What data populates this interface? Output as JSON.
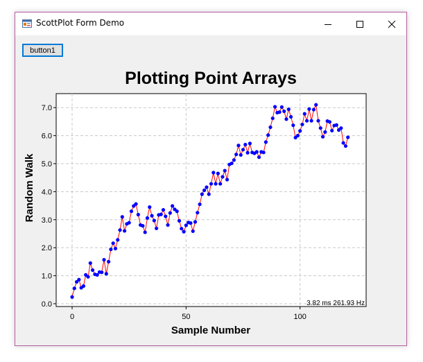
{
  "window": {
    "title": "ScottPlot Form Demo",
    "icons": {
      "app": "app-form-icon",
      "minimize": "minimize-icon",
      "maximize": "maximize-icon",
      "close": "close-icon"
    }
  },
  "toolbar": {
    "button1_label": "button1"
  },
  "benchmark": "3.82 ms 261.93 Hz",
  "colors": {
    "line": "#ff0000",
    "marker": "#0000ff",
    "grid": "#c8c8c8"
  },
  "chart_data": {
    "type": "scatter",
    "title": "Plotting Point Arrays",
    "xlabel": "Sample Number",
    "ylabel": "Random Walk",
    "xlim": [
      -7,
      129
    ],
    "ylim": [
      -0.1,
      7.5
    ],
    "x_ticks": [
      0,
      50,
      100
    ],
    "y_ticks": [
      0.0,
      1.0,
      2.0,
      3.0,
      4.0,
      5.0,
      6.0,
      7.0
    ],
    "x_tick_labels": [
      "0",
      "50",
      "100"
    ],
    "y_tick_labels": [
      "0.0",
      "1.0",
      "2.0",
      "3.0",
      "4.0",
      "5.0",
      "6.0",
      "7.0"
    ],
    "grid": true,
    "series": [
      {
        "x_start": 0,
        "x_step": 1,
        "values": [
          0.24,
          0.55,
          0.78,
          0.86,
          0.57,
          0.63,
          1.03,
          0.96,
          1.45,
          1.2,
          1.05,
          1.03,
          1.13,
          1.12,
          1.57,
          1.07,
          1.5,
          1.94,
          2.16,
          1.97,
          2.28,
          2.63,
          3.1,
          2.6,
          2.85,
          2.89,
          3.3,
          3.49,
          3.56,
          3.18,
          2.81,
          2.78,
          2.55,
          3.06,
          3.45,
          3.14,
          2.97,
          2.69,
          3.17,
          3.19,
          3.35,
          3.12,
          2.81,
          3.24,
          3.49,
          3.37,
          3.3,
          2.96,
          2.68,
          2.57,
          2.8,
          2.9,
          2.88,
          2.59,
          2.92,
          3.25,
          3.55,
          3.91,
          4.05,
          4.16,
          3.91,
          4.28,
          4.68,
          4.28,
          4.65,
          4.28,
          4.53,
          4.75,
          4.43,
          4.97,
          5.01,
          5.13,
          5.33,
          5.65,
          5.31,
          5.5,
          5.68,
          5.39,
          5.72,
          5.4,
          5.37,
          5.42,
          5.23,
          5.42,
          5.4,
          5.77,
          6.02,
          6.3,
          6.62,
          7.03,
          6.82,
          6.84,
          7.02,
          6.87,
          6.59,
          6.94,
          6.67,
          6.37,
          5.93,
          6.0,
          6.17,
          6.4,
          6.78,
          6.53,
          6.95,
          6.53,
          6.93,
          7.1,
          6.53,
          6.27,
          5.96,
          6.13,
          6.52,
          6.49,
          6.18,
          6.36,
          6.38,
          6.2,
          6.27,
          5.74,
          5.63,
          5.94
        ]
      }
    ]
  }
}
